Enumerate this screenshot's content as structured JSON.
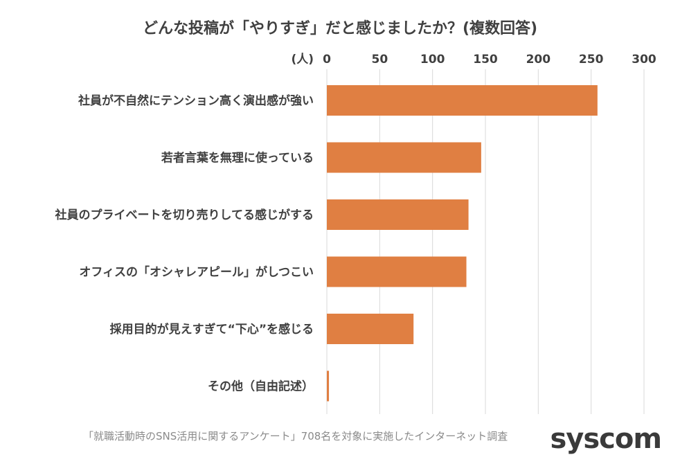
{
  "chart_data": {
    "type": "bar",
    "orientation": "horizontal",
    "title": "どんな投稿が「やりすぎ」だと感じましたか？(複数回答)",
    "unit_label": "(人)",
    "categories": [
      "社員が不自然にテンション高く演出感が強い",
      "若者言葉を無理に使っている",
      "社員のプライベートを切り売りしてる感じがする",
      "オフィスの「オシャレアピール」がしつこい",
      "採用目的が見えすぎて“下心”を感じる",
      "その他（自由記述）"
    ],
    "values": [
      256,
      146,
      134,
      132,
      82,
      2
    ],
    "xlim": [
      0,
      300
    ],
    "xticks": [
      "0",
      "50",
      "100",
      "150",
      "200",
      "250",
      "300"
    ],
    "axis_position": "top",
    "grid": true,
    "bar_color": "#e07f42"
  },
  "footer": {
    "source": "「就職活動時のSNS活用に関するアンケート」708名を対象に実施したインターネット調査",
    "logo": "syscom"
  }
}
